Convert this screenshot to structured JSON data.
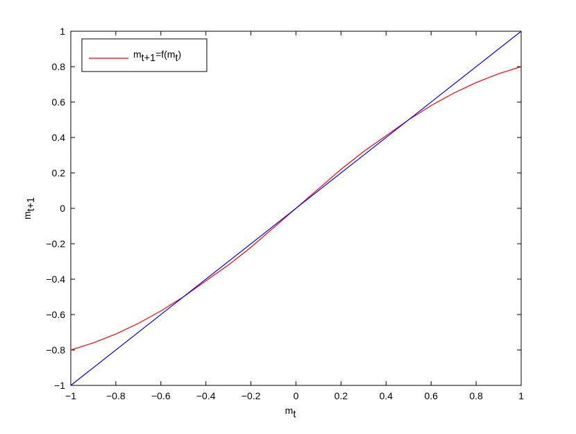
{
  "chart_data": {
    "type": "line",
    "xlabel": [
      {
        "text": "m"
      },
      {
        "text": "t",
        "sub": true
      }
    ],
    "ylabel": [
      {
        "text": "m"
      },
      {
        "text": "t+1",
        "sub": true
      }
    ],
    "series": [
      {
        "name": [
          {
            "text": "m"
          },
          {
            "text": "t+1",
            "sub": true
          },
          {
            "text": "=f(m"
          },
          {
            "text": "t",
            "sub": true
          },
          {
            "text": ")"
          }
        ],
        "color": "#ff0000",
        "x": [
          -1,
          -0.9,
          -0.8,
          -0.7,
          -0.6,
          -0.5,
          -0.4,
          -0.3,
          -0.2,
          -0.1,
          0,
          0.1,
          0.2,
          0.3,
          0.4,
          0.5,
          0.6,
          0.7,
          0.8,
          0.9,
          1
        ],
        "values": [
          -0.8,
          -0.76,
          -0.71,
          -0.65,
          -0.58,
          -0.5,
          -0.41,
          -0.32,
          -0.22,
          -0.11,
          0,
          0.11,
          0.22,
          0.32,
          0.41,
          0.5,
          0.58,
          0.65,
          0.71,
          0.76,
          0.8
        ]
      },
      {
        "color": "#0000ff",
        "x": [
          -1,
          1
        ],
        "values": [
          -1,
          1
        ]
      }
    ],
    "xlim": [
      -1,
      1
    ],
    "ylim": [
      -1,
      1
    ],
    "xticks": [
      {
        "value": -1,
        "label": "−1"
      },
      {
        "value": -0.8,
        "label": "−0.8"
      },
      {
        "value": -0.6,
        "label": "−0.6"
      },
      {
        "value": -0.4,
        "label": "−0.4"
      },
      {
        "value": -0.2,
        "label": "−0.2"
      },
      0,
      0.2,
      0.4,
      0.6,
      0.8,
      1
    ],
    "yticks": [
      {
        "value": -1,
        "label": "−1"
      },
      {
        "value": -0.8,
        "label": "−0.8"
      },
      {
        "value": -0.6,
        "label": "−0.6"
      },
      {
        "value": -0.4,
        "label": "−0.4"
      },
      {
        "value": -0.2,
        "label": "−0.2"
      },
      0,
      0.2,
      0.4,
      0.6,
      0.8,
      1
    ],
    "grid": false,
    "legend": "upper left"
  }
}
